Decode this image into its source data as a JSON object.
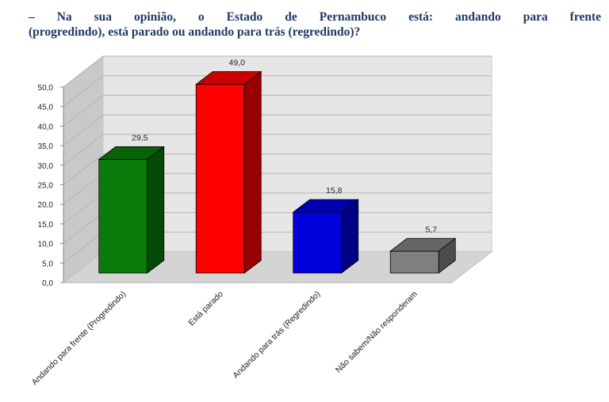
{
  "title": {
    "line1": "– Na sua opinião, o Estado de Pernambuco está: andando para frente",
    "line2": "(progredindo), está parado ou andando para trás (regredindo)?"
  },
  "chart_data": {
    "type": "bar",
    "categories": [
      "Andando para frente (Progredindo)",
      "Está parado",
      "Andando para trás (Regredindo)",
      "Não sabem/Não responderam"
    ],
    "values": [
      29.5,
      49.0,
      15.8,
      5.7
    ],
    "value_labels": [
      "29,5",
      "49,0",
      "15,8",
      "5,7"
    ],
    "ylim": [
      0,
      50
    ],
    "yticks": [
      "0,0",
      "5,0",
      "10,0",
      "15,0",
      "20,0",
      "25,0",
      "30,0",
      "35,0",
      "40,0",
      "45,0",
      "50,0"
    ],
    "grid": true,
    "colors": [
      "#0a7a0a",
      "#ff0000",
      "#0000dd",
      "#7f7f7f"
    ],
    "xlabel": "",
    "ylabel": ""
  }
}
